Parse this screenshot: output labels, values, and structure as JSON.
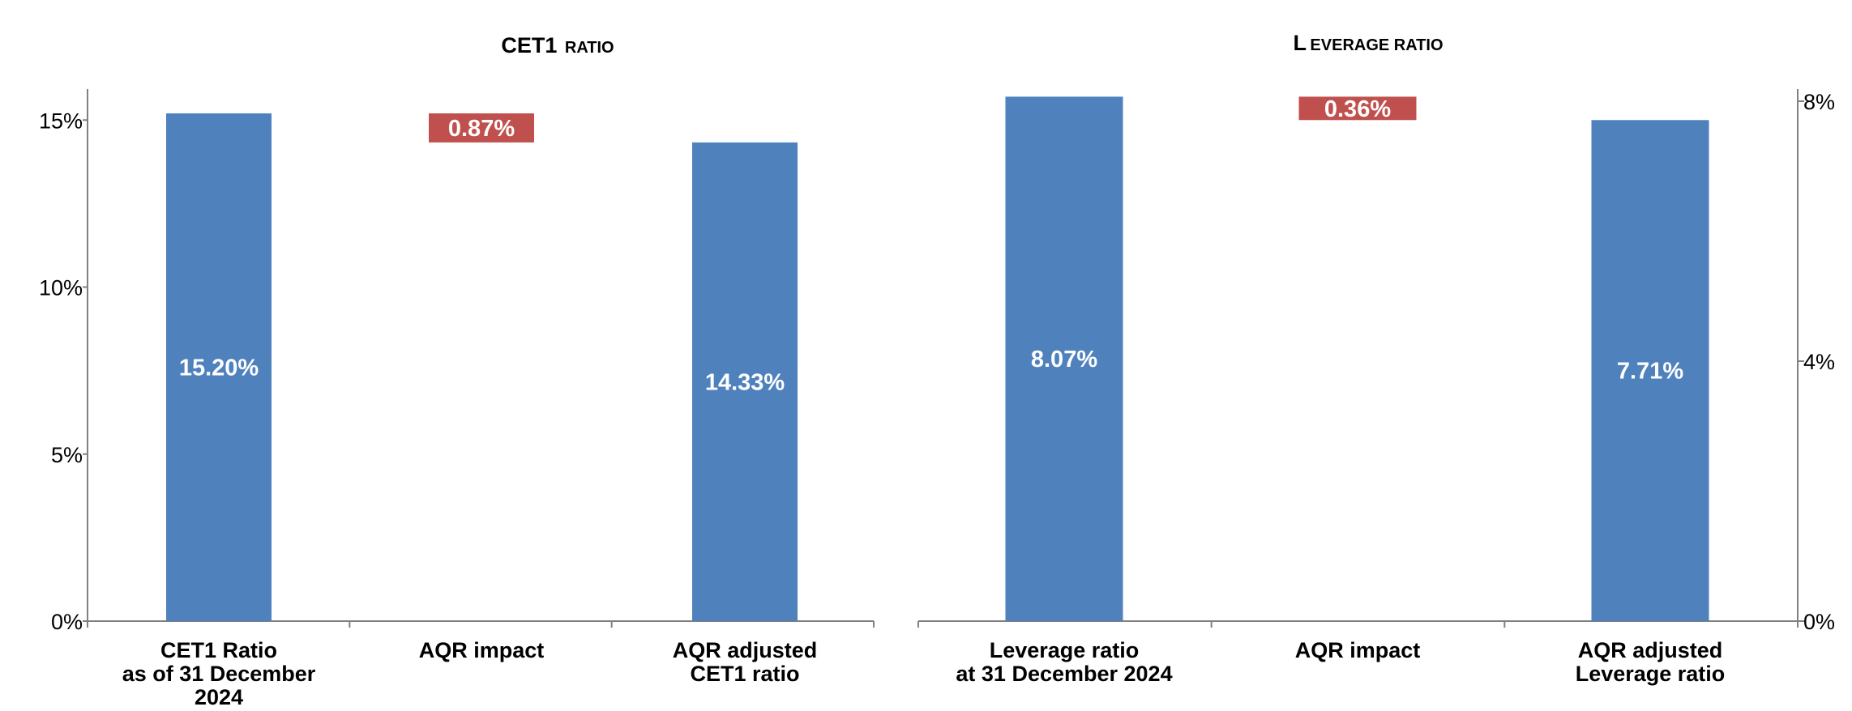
{
  "chart_data": [
    {
      "type": "bar",
      "title": "CET1 RATIO",
      "title_caps": "CET1",
      "title_rest": "RATIO",
      "categories": [
        [
          "CET1 Ratio",
          "as of 31 December",
          "2024"
        ],
        [
          "AQR impact"
        ],
        [
          "AQR adjusted",
          "CET1 ratio"
        ]
      ],
      "series": [
        {
          "values": [
            15.2,
            0.87,
            14.33
          ],
          "kinds": [
            "total",
            "decrease",
            "total"
          ]
        }
      ],
      "data_labels": [
        "15.20%",
        "0.87%",
        "14.33%"
      ],
      "y_axis": {
        "side": "left",
        "ylim": [
          0,
          16
        ],
        "ticks": [
          0,
          5,
          10,
          15
        ],
        "tick_labels": [
          "0%",
          "5%",
          "10%",
          "15%"
        ]
      },
      "colors": {
        "total": "#4F81BD",
        "decrease": "#C0504D"
      }
    },
    {
      "type": "bar",
      "title": "LEVERAGE RATIO",
      "title_caps": "L",
      "title_rest": "EVERAGE RATIO",
      "categories": [
        [
          "Leverage ratio",
          "at 31 December 2024"
        ],
        [
          "AQR impact"
        ],
        [
          "AQR adjusted",
          "Leverage ratio"
        ]
      ],
      "series": [
        {
          "values": [
            8.07,
            0.36,
            7.71
          ],
          "kinds": [
            "total",
            "decrease",
            "total"
          ]
        }
      ],
      "data_labels": [
        "8.07%",
        "0.36%",
        "7.71%"
      ],
      "y_axis": {
        "side": "right",
        "ylim": [
          0,
          8
        ],
        "ticks": [
          0,
          4,
          8
        ],
        "tick_labels": [
          "0%",
          "4%",
          "8%"
        ]
      },
      "colors": {
        "total": "#4F81BD",
        "decrease": "#C0504D"
      }
    }
  ]
}
